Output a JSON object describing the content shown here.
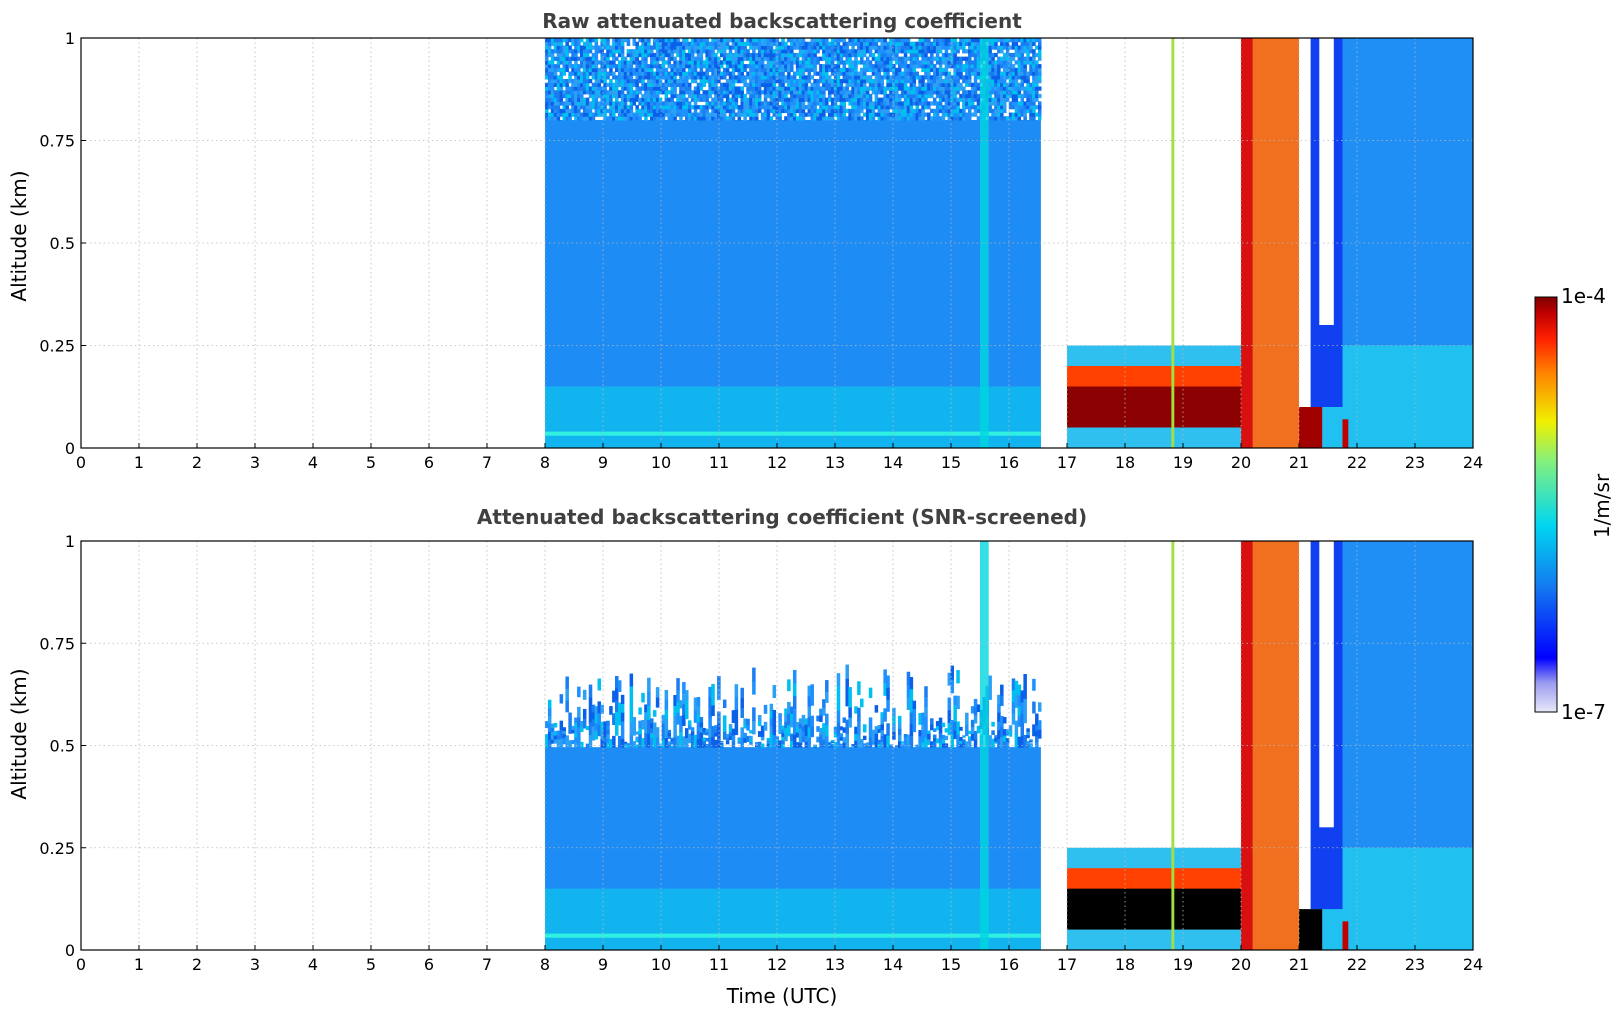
{
  "chart_data": [
    {
      "type": "heatmap",
      "title": "Raw attenuated backscattering coefficient",
      "xlabel": "",
      "ylabel": "Altitude (km)",
      "xlim": [
        0,
        24
      ],
      "ylim": [
        0,
        1
      ],
      "x_ticks": [
        "0",
        "1",
        "2",
        "3",
        "4",
        "5",
        "6",
        "7",
        "8",
        "9",
        "10",
        "11",
        "12",
        "13",
        "14",
        "15",
        "16",
        "17",
        "18",
        "19",
        "20",
        "21",
        "22",
        "23",
        "24"
      ],
      "y_ticks": [
        "0",
        "0.25",
        "0.5",
        "0.75",
        "1"
      ],
      "grid": true,
      "data_segments_utc": [
        [
          8.0,
          16.55
        ],
        [
          17.0,
          24.0
        ]
      ],
      "features": {
        "aerosol_layer_top_km": 0.5,
        "low_cloud_base_km": [
          0.05,
          0.25
        ],
        "low_cloud_hours": [
          17.0,
          20.0
        ],
        "thick_cloud_hours": [
          20.0,
          21.0
        ],
        "second_cloud_hours": [
          21.0,
          21.4
        ],
        "plume_hour": 21.8
      },
      "colorbar": {
        "min": "1e-7",
        "max": "1e-4",
        "label": "1/m/sr",
        "scale": "log"
      }
    },
    {
      "type": "heatmap",
      "title": "Attenuated backscattering coefficient (SNR-screened)",
      "xlabel": "Time (UTC)",
      "ylabel": "Altitude (km)",
      "xlim": [
        0,
        24
      ],
      "ylim": [
        0,
        1
      ],
      "x_ticks": [
        "0",
        "1",
        "2",
        "3",
        "4",
        "5",
        "6",
        "7",
        "8",
        "9",
        "10",
        "11",
        "12",
        "13",
        "14",
        "15",
        "16",
        "17",
        "18",
        "19",
        "20",
        "21",
        "22",
        "23",
        "24"
      ],
      "y_ticks": [
        "0",
        "0.25",
        "0.5",
        "0.75",
        "1"
      ],
      "grid": true,
      "data_segments_utc": [
        [
          8.0,
          16.55
        ],
        [
          17.0,
          24.0
        ]
      ],
      "features": {
        "screened_top_km": 0.62,
        "low_cloud_base_km": [
          0.05,
          0.25
        ],
        "low_cloud_hours": [
          17.0,
          20.0
        ],
        "thick_cloud_hours": [
          20.0,
          21.0
        ]
      },
      "colorbar": {
        "min": "1e-7",
        "max": "1e-4",
        "label": "1/m/sr",
        "scale": "log"
      }
    }
  ]
}
